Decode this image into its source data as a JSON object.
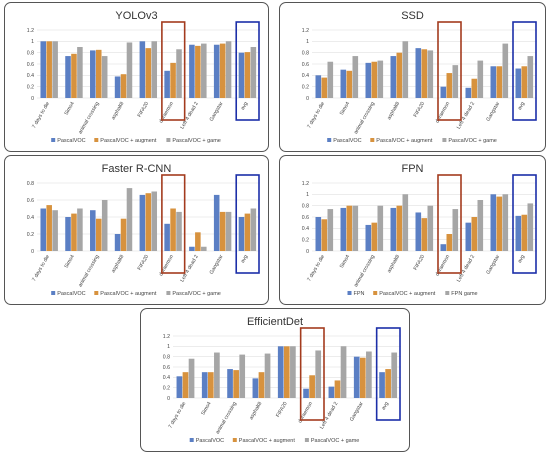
{
  "colors": {
    "blue": "#5b7fc4",
    "orange": "#d7923e",
    "gray": "#a6a6a6",
    "grid": "#d9d9d9",
    "hl_red": "#a33b1e",
    "hl_blue": "#1c2fa8"
  },
  "chart_data": [
    {
      "id": "yolo",
      "type": "bar",
      "title": "YOLOv3",
      "categories": [
        "7 days to die",
        "Sims4",
        "animal crossing",
        "asphalt8",
        "FIFA20",
        "doraemon",
        "Left 4 dead 2",
        "Gangstar",
        "avg"
      ],
      "ylim": [
        0,
        1.2
      ],
      "yticks": [
        0,
        0.2,
        0.4,
        0.6,
        0.8,
        1,
        1.2
      ],
      "series": [
        {
          "name": "PascalVOC",
          "color": "#5b7fc4",
          "values": [
            1.0,
            0.74,
            0.84,
            0.38,
            1.0,
            0.48,
            0.94,
            0.94,
            0.8
          ]
        },
        {
          "name": "PascalVOC + augment",
          "color": "#d7923e",
          "values": [
            1.0,
            0.78,
            0.85,
            0.42,
            0.88,
            0.62,
            0.92,
            0.96,
            0.81
          ]
        },
        {
          "name": "PascalVOC + game",
          "color": "#a6a6a6",
          "values": [
            1.0,
            0.9,
            0.74,
            0.98,
            1.0,
            0.86,
            0.96,
            1.0,
            0.9
          ]
        }
      ],
      "highlights": [
        5,
        8
      ]
    },
    {
      "id": "ssd",
      "type": "bar",
      "title": "SSD",
      "categories": [
        "7 days to die",
        "Sims4",
        "animal crossing",
        "asphalt8",
        "FIFA20",
        "doraemon",
        "Left 4 dead 2",
        "Gangstar",
        "avg"
      ],
      "ylim": [
        0,
        1.2
      ],
      "yticks": [
        0,
        0.2,
        0.4,
        0.6,
        0.8,
        1,
        1.2
      ],
      "series": [
        {
          "name": "PascalVOC",
          "color": "#5b7fc4",
          "values": [
            0.4,
            0.5,
            0.62,
            0.74,
            0.88,
            0.2,
            0.18,
            0.56,
            0.52
          ]
        },
        {
          "name": "PascalVOC + augment",
          "color": "#d7923e",
          "values": [
            0.36,
            0.48,
            0.64,
            0.8,
            0.86,
            0.44,
            0.34,
            0.56,
            0.56
          ]
        },
        {
          "name": "PascalVOC + game",
          "color": "#a6a6a6",
          "values": [
            0.64,
            0.74,
            0.66,
            1.0,
            0.84,
            0.58,
            0.66,
            0.96,
            0.74
          ]
        }
      ],
      "highlights": [
        5,
        8
      ]
    },
    {
      "id": "frcnn",
      "type": "bar",
      "title": "Faster R-CNN",
      "categories": [
        "7 days to die",
        "Sims4",
        "animal crossing",
        "asphalt8",
        "FIFA20",
        "doraemon",
        "Left 4 dead 2",
        "Gangstar",
        "avg"
      ],
      "ylim": [
        0,
        0.8
      ],
      "yticks": [
        0,
        0.2,
        0.4,
        0.6,
        0.8
      ],
      "series": [
        {
          "name": "PascalVOC",
          "color": "#5b7fc4",
          "values": [
            0.5,
            0.4,
            0.48,
            0.2,
            0.66,
            0.32,
            0.05,
            0.66,
            0.4
          ]
        },
        {
          "name": "PascalVOC + augment",
          "color": "#d7923e",
          "values": [
            0.54,
            0.44,
            0.38,
            0.38,
            0.68,
            0.5,
            0.22,
            0.46,
            0.44
          ]
        },
        {
          "name": "PascalVOC + game",
          "color": "#a6a6a6",
          "values": [
            0.48,
            0.5,
            0.6,
            0.74,
            0.7,
            0.46,
            0.05,
            0.46,
            0.5
          ]
        }
      ],
      "highlights": [
        5,
        8
      ]
    },
    {
      "id": "fpn",
      "type": "bar",
      "title": "FPN",
      "categories": [
        "7 days to die",
        "Sims4",
        "animal crossing",
        "asphalt8",
        "FIFA20",
        "doraemon",
        "Left 4 dead 2",
        "Gangstar",
        "avg"
      ],
      "ylim": [
        0,
        1.2
      ],
      "yticks": [
        0,
        0.2,
        0.4,
        0.6,
        0.8,
        1,
        1.2
      ],
      "series": [
        {
          "name": "FPN",
          "color": "#5b7fc4",
          "values": [
            0.6,
            0.76,
            0.46,
            0.76,
            0.68,
            0.12,
            0.5,
            1.0,
            0.62
          ]
        },
        {
          "name": "PascalVOC + augment",
          "color": "#d7923e",
          "values": [
            0.56,
            0.8,
            0.5,
            0.8,
            0.58,
            0.3,
            0.6,
            0.96,
            0.64
          ]
        },
        {
          "name": "FPN game",
          "color": "#a6a6a6",
          "values": [
            0.74,
            0.8,
            0.8,
            1.0,
            0.8,
            0.74,
            0.9,
            1.0,
            0.84
          ]
        }
      ],
      "highlights": [
        5,
        8
      ]
    },
    {
      "id": "eff",
      "type": "bar",
      "title": "EfficientDet",
      "categories": [
        "7 days to die",
        "Sims4",
        "animal crossing",
        "asphalt8",
        "FIFA20",
        "doraemon",
        "Left 4 dead 2",
        "Gangstar",
        "avg"
      ],
      "ylim": [
        0,
        1.2
      ],
      "yticks": [
        0,
        0.2,
        0.4,
        0.6,
        0.8,
        1,
        1.2
      ],
      "series": [
        {
          "name": "PascalVOC",
          "color": "#5b7fc4",
          "values": [
            0.42,
            0.5,
            0.56,
            0.38,
            1.0,
            0.18,
            0.22,
            0.8,
            0.5
          ]
        },
        {
          "name": "PascalVOC + augment",
          "color": "#d7923e",
          "values": [
            0.5,
            0.5,
            0.54,
            0.5,
            1.0,
            0.44,
            0.34,
            0.78,
            0.56
          ]
        },
        {
          "name": "PascalVOC + game",
          "color": "#a6a6a6",
          "values": [
            0.76,
            0.88,
            0.84,
            0.86,
            1.0,
            0.92,
            1.0,
            0.9,
            0.88
          ]
        }
      ],
      "highlights": [
        5,
        8
      ]
    }
  ]
}
